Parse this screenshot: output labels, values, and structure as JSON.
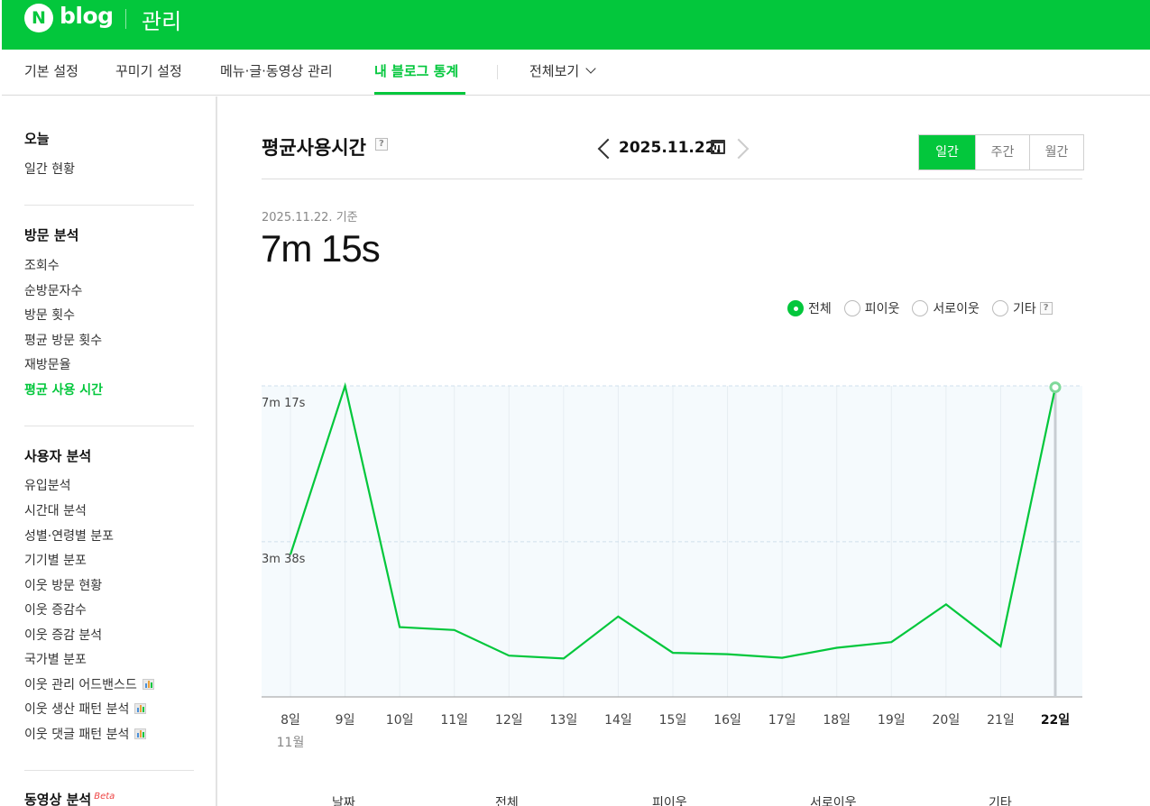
{
  "header": {
    "logo_mark": "N",
    "logo_text": "blog",
    "section": "관리"
  },
  "nav": {
    "items": [
      {
        "label": "기본 설정"
      },
      {
        "label": "꾸미기 설정"
      },
      {
        "label": "메뉴·글·동영상 관리"
      },
      {
        "label": "내 블로그 통계",
        "active": true
      }
    ],
    "view_all": "전체보기"
  },
  "sidebar": {
    "today": {
      "heading": "오늘",
      "items": [
        "일간 현황"
      ]
    },
    "visit": {
      "heading": "방문 분석",
      "items": [
        "조회수",
        "순방문자수",
        "방문 횟수",
        "평균 방문 횟수",
        "재방문율",
        "평균 사용 시간"
      ],
      "active_index": 5
    },
    "user": {
      "heading": "사용자 분석",
      "items": [
        "유입분석",
        "시간대 분석",
        "성별·연령별 분포",
        "기기별 분포",
        "이웃 방문 현황",
        "이웃 증감수",
        "이웃 증감 분석",
        "국가별 분포",
        "이웃 관리 어드밴스드",
        "이웃 생산 패턴 분석",
        "이웃 댓글 패턴 분석"
      ],
      "chart_icon_from": 8
    },
    "video": {
      "heading": "동영상 분석",
      "badge": "Beta"
    }
  },
  "main": {
    "title": "평균사용시간",
    "help": "?",
    "date": "2025.11.22.",
    "period_tabs": [
      "일간",
      "주간",
      "월간"
    ],
    "basis_text": "2025.11.22. 기준",
    "value": "7m 15s",
    "filters": [
      {
        "label": "전체",
        "selected": true
      },
      {
        "label": "피이웃",
        "selected": false
      },
      {
        "label": "서로이웃",
        "selected": false
      },
      {
        "label": "기타",
        "selected": false
      }
    ],
    "table_headers": [
      "날짜",
      "전체",
      "피이웃",
      "서로이웃",
      "기타"
    ]
  },
  "chart_data": {
    "type": "line",
    "series": [
      {
        "x": [
          "8일",
          "9일",
          "10일",
          "11일",
          "12일",
          "13일",
          "14일",
          "15일",
          "16일",
          "17일",
          "18일",
          "19일",
          "20일",
          "21일",
          "22일"
        ],
        "values_seconds": [
          200,
          437,
          98,
          94,
          58,
          54,
          113,
          62,
          60,
          55,
          69,
          77,
          130,
          71,
          435
        ],
        "color": "#03c73c"
      }
    ],
    "x_sub_label": "11월",
    "y_ticks": [
      {
        "label": "7m 17s",
        "seconds": 437
      },
      {
        "label": "3m 38s",
        "seconds": 218
      }
    ],
    "ylim_seconds": [
      0,
      437
    ],
    "highlight_index": 14
  }
}
